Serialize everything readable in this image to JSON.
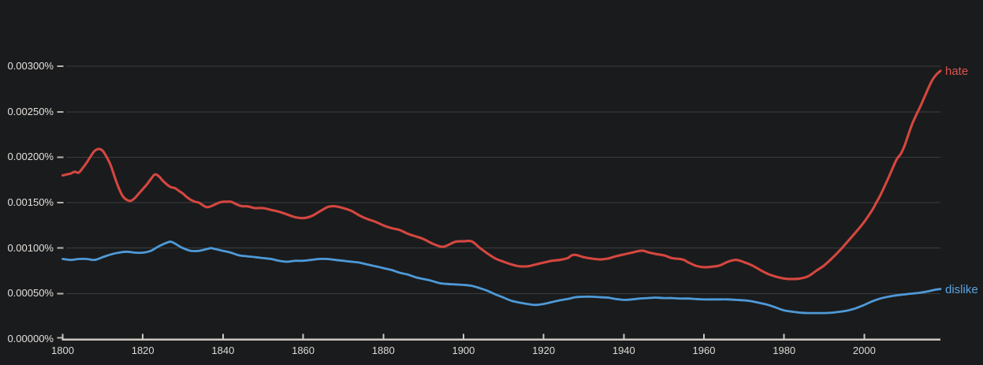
{
  "chart_data": {
    "type": "line",
    "title": "",
    "xlabel": "",
    "ylabel": "",
    "xlim": [
      1800,
      2019
    ],
    "ylim_percent": [
      0,
      0.003
    ],
    "grid": true,
    "legend_position": "end-of-line-right",
    "x_ticks": [
      1800,
      1820,
      1840,
      1860,
      1880,
      1900,
      1920,
      1940,
      1960,
      1980,
      2000
    ],
    "y_ticks": [
      {
        "value": 0.0,
        "label": "0.00000%"
      },
      {
        "value": 0.0005,
        "label": "0.00050%"
      },
      {
        "value": 0.001,
        "label": "0.00100%"
      },
      {
        "value": 0.0015,
        "label": "0.00150%"
      },
      {
        "value": 0.002,
        "label": "0.00200%"
      },
      {
        "value": 0.0025,
        "label": "0.00250%"
      },
      {
        "value": 0.003,
        "label": "0.00300%"
      }
    ],
    "series": [
      {
        "name": "hate",
        "label": "hate",
        "color": "#d4473f",
        "label_color": "#da554d",
        "points": [
          [
            1800,
            0.0018
          ],
          [
            1801,
            0.00181
          ],
          [
            1802,
            0.00182
          ],
          [
            1803,
            0.00184
          ],
          [
            1804,
            0.00183
          ],
          [
            1805,
            0.00188
          ],
          [
            1806,
            0.00194
          ],
          [
            1807,
            0.00201
          ],
          [
            1808,
            0.00207
          ],
          [
            1809,
            0.00209
          ],
          [
            1810,
            0.00207
          ],
          [
            1811,
            0.002
          ],
          [
            1812,
            0.00191
          ],
          [
            1813,
            0.00178
          ],
          [
            1814,
            0.00166
          ],
          [
            1815,
            0.00157
          ],
          [
            1816,
            0.00153
          ],
          [
            1817,
            0.00152
          ],
          [
            1818,
            0.00155
          ],
          [
            1819,
            0.0016
          ],
          [
            1820,
            0.00165
          ],
          [
            1821,
            0.0017
          ],
          [
            1822,
            0.00176
          ],
          [
            1823,
            0.00181
          ],
          [
            1824,
            0.00179
          ],
          [
            1825,
            0.00174
          ],
          [
            1826,
            0.0017
          ],
          [
            1827,
            0.00167
          ],
          [
            1828,
            0.00166
          ],
          [
            1829,
            0.00163
          ],
          [
            1830,
            0.0016
          ],
          [
            1831,
            0.00156
          ],
          [
            1832,
            0.00153
          ],
          [
            1833,
            0.00151
          ],
          [
            1834,
            0.0015
          ],
          [
            1835,
            0.00147
          ],
          [
            1836,
            0.00145
          ],
          [
            1837,
            0.00146
          ],
          [
            1838,
            0.00148
          ],
          [
            1839,
            0.0015
          ],
          [
            1840,
            0.00151
          ],
          [
            1841,
            0.00151
          ],
          [
            1842,
            0.00151
          ],
          [
            1843,
            0.00149
          ],
          [
            1844,
            0.00147
          ],
          [
            1845,
            0.00146
          ],
          [
            1846,
            0.00146
          ],
          [
            1847,
            0.00145
          ],
          [
            1848,
            0.00144
          ],
          [
            1850,
            0.00144
          ],
          [
            1852,
            0.00142
          ],
          [
            1854,
            0.0014
          ],
          [
            1856,
            0.00137
          ],
          [
            1858,
            0.00134
          ],
          [
            1860,
            0.00133
          ],
          [
            1862,
            0.00135
          ],
          [
            1864,
            0.0014
          ],
          [
            1866,
            0.00145
          ],
          [
            1867,
            0.00146
          ],
          [
            1868,
            0.00146
          ],
          [
            1870,
            0.00144
          ],
          [
            1872,
            0.00141
          ],
          [
            1874,
            0.00136
          ],
          [
            1876,
            0.00132
          ],
          [
            1878,
            0.00129
          ],
          [
            1880,
            0.00125
          ],
          [
            1882,
            0.00122
          ],
          [
            1884,
            0.0012
          ],
          [
            1886,
            0.00116
          ],
          [
            1888,
            0.00113
          ],
          [
            1890,
            0.0011
          ],
          [
            1892,
            0.001055
          ],
          [
            1894,
            0.00102
          ],
          [
            1895,
            0.001015
          ],
          [
            1896,
            0.00103
          ],
          [
            1898,
            0.00107
          ],
          [
            1900,
            0.001075
          ],
          [
            1902,
            0.001075
          ],
          [
            1904,
            0.001005
          ],
          [
            1906,
            0.00094
          ],
          [
            1908,
            0.000885
          ],
          [
            1910,
            0.00085
          ],
          [
            1912,
            0.00082
          ],
          [
            1914,
            0.0008
          ],
          [
            1916,
            0.0008
          ],
          [
            1918,
            0.00082
          ],
          [
            1920,
            0.00084
          ],
          [
            1922,
            0.00086
          ],
          [
            1924,
            0.00087
          ],
          [
            1926,
            0.00089
          ],
          [
            1927,
            0.00092
          ],
          [
            1928,
            0.000925
          ],
          [
            1930,
            0.0009
          ],
          [
            1932,
            0.000885
          ],
          [
            1934,
            0.000875
          ],
          [
            1936,
            0.000885
          ],
          [
            1938,
            0.00091
          ],
          [
            1940,
            0.00093
          ],
          [
            1942,
            0.00095
          ],
          [
            1944,
            0.00097
          ],
          [
            1945,
            0.00097
          ],
          [
            1946,
            0.000955
          ],
          [
            1948,
            0.000935
          ],
          [
            1950,
            0.00092
          ],
          [
            1952,
            0.00089
          ],
          [
            1954,
            0.00088
          ],
          [
            1955,
            0.00087
          ],
          [
            1956,
            0.000845
          ],
          [
            1958,
            0.000805
          ],
          [
            1960,
            0.00079
          ],
          [
            1962,
            0.000795
          ],
          [
            1964,
            0.00081
          ],
          [
            1966,
            0.00085
          ],
          [
            1968,
            0.00087
          ],
          [
            1970,
            0.000845
          ],
          [
            1972,
            0.00081
          ],
          [
            1974,
            0.00076
          ],
          [
            1976,
            0.000715
          ],
          [
            1978,
            0.000685
          ],
          [
            1980,
            0.000665
          ],
          [
            1982,
            0.00066
          ],
          [
            1984,
            0.000665
          ],
          [
            1986,
            0.00069
          ],
          [
            1988,
            0.00075
          ],
          [
            1990,
            0.00081
          ],
          [
            1992,
            0.00089
          ],
          [
            1994,
            0.00098
          ],
          [
            1996,
            0.00108
          ],
          [
            1998,
            0.00118
          ],
          [
            2000,
            0.00129
          ],
          [
            2002,
            0.00142
          ],
          [
            2003,
            0.0015
          ],
          [
            2004,
            0.00158
          ],
          [
            2006,
            0.00177
          ],
          [
            2008,
            0.00197
          ],
          [
            2009,
            0.00203
          ],
          [
            2010,
            0.00212
          ],
          [
            2012,
            0.00237
          ],
          [
            2014,
            0.00256
          ],
          [
            2015,
            0.00266
          ],
          [
            2016,
            0.00276
          ],
          [
            2017,
            0.00285
          ],
          [
            2018,
            0.00291
          ],
          [
            2019,
            0.00295
          ]
        ]
      },
      {
        "name": "dislike",
        "label": "dislike",
        "color": "#4e9ad8",
        "label_color": "#5ba4e2",
        "points": [
          [
            1800,
            0.00088
          ],
          [
            1802,
            0.00087
          ],
          [
            1804,
            0.00088
          ],
          [
            1806,
            0.00088
          ],
          [
            1808,
            0.00087
          ],
          [
            1810,
            0.0009
          ],
          [
            1812,
            0.00093
          ],
          [
            1814,
            0.00095
          ],
          [
            1816,
            0.00096
          ],
          [
            1818,
            0.00095
          ],
          [
            1820,
            0.00095
          ],
          [
            1822,
            0.00097
          ],
          [
            1824,
            0.00102
          ],
          [
            1826,
            0.00106
          ],
          [
            1827,
            0.00107
          ],
          [
            1828,
            0.00105
          ],
          [
            1830,
            0.001
          ],
          [
            1832,
            0.00097
          ],
          [
            1834,
            0.00097
          ],
          [
            1836,
            0.00099
          ],
          [
            1837,
            0.001
          ],
          [
            1838,
            0.00099
          ],
          [
            1840,
            0.00097
          ],
          [
            1842,
            0.00095
          ],
          [
            1844,
            0.00092
          ],
          [
            1846,
            0.00091
          ],
          [
            1848,
            0.0009
          ],
          [
            1850,
            0.00089
          ],
          [
            1852,
            0.00088
          ],
          [
            1854,
            0.00086
          ],
          [
            1856,
            0.00085
          ],
          [
            1858,
            0.00086
          ],
          [
            1860,
            0.00086
          ],
          [
            1862,
            0.00087
          ],
          [
            1864,
            0.00088
          ],
          [
            1866,
            0.00088
          ],
          [
            1868,
            0.00087
          ],
          [
            1870,
            0.00086
          ],
          [
            1872,
            0.00085
          ],
          [
            1874,
            0.00084
          ],
          [
            1876,
            0.00082
          ],
          [
            1878,
            0.0008
          ],
          [
            1880,
            0.00078
          ],
          [
            1882,
            0.00076
          ],
          [
            1884,
            0.00073
          ],
          [
            1886,
            0.00071
          ],
          [
            1888,
            0.00068
          ],
          [
            1890,
            0.00066
          ],
          [
            1892,
            0.00064
          ],
          [
            1894,
            0.000615
          ],
          [
            1896,
            0.000605
          ],
          [
            1898,
            0.0006
          ],
          [
            1900,
            0.000595
          ],
          [
            1902,
            0.000585
          ],
          [
            1904,
            0.00056
          ],
          [
            1906,
            0.00053
          ],
          [
            1908,
            0.00049
          ],
          [
            1910,
            0.000455
          ],
          [
            1912,
            0.00042
          ],
          [
            1914,
            0.0004
          ],
          [
            1916,
            0.000385
          ],
          [
            1918,
            0.000375
          ],
          [
            1920,
            0.000385
          ],
          [
            1922,
            0.000405
          ],
          [
            1924,
            0.000425
          ],
          [
            1926,
            0.00044
          ],
          [
            1928,
            0.00046
          ],
          [
            1930,
            0.000465
          ],
          [
            1932,
            0.000465
          ],
          [
            1934,
            0.00046
          ],
          [
            1936,
            0.000455
          ],
          [
            1938,
            0.00044
          ],
          [
            1940,
            0.00043
          ],
          [
            1942,
            0.000435
          ],
          [
            1944,
            0.000445
          ],
          [
            1946,
            0.00045
          ],
          [
            1948,
            0.000455
          ],
          [
            1950,
            0.00045
          ],
          [
            1952,
            0.00045
          ],
          [
            1954,
            0.000445
          ],
          [
            1956,
            0.000445
          ],
          [
            1958,
            0.00044
          ],
          [
            1960,
            0.000435
          ],
          [
            1962,
            0.000435
          ],
          [
            1964,
            0.000435
          ],
          [
            1966,
            0.000435
          ],
          [
            1968,
            0.00043
          ],
          [
            1970,
            0.000425
          ],
          [
            1972,
            0.000415
          ],
          [
            1974,
            0.000395
          ],
          [
            1976,
            0.000375
          ],
          [
            1978,
            0.000345
          ],
          [
            1980,
            0.000315
          ],
          [
            1982,
            0.0003
          ],
          [
            1984,
            0.00029
          ],
          [
            1986,
            0.000285
          ],
          [
            1988,
            0.000285
          ],
          [
            1990,
            0.000285
          ],
          [
            1992,
            0.00029
          ],
          [
            1994,
            0.0003
          ],
          [
            1996,
            0.000315
          ],
          [
            1998,
            0.00034
          ],
          [
            2000,
            0.000375
          ],
          [
            2002,
            0.000415
          ],
          [
            2004,
            0.000445
          ],
          [
            2006,
            0.000465
          ],
          [
            2008,
            0.00048
          ],
          [
            2010,
            0.00049
          ],
          [
            2012,
            0.0005
          ],
          [
            2014,
            0.00051
          ],
          [
            2016,
            0.000525
          ],
          [
            2018,
            0.000545
          ],
          [
            2019,
            0.00055
          ]
        ]
      }
    ]
  },
  "colors": {
    "background": "#1a1b1d",
    "gridline": "#3c3d3f",
    "axis_line": "#cbc7bf",
    "tick_label": "#e3e1dc"
  }
}
